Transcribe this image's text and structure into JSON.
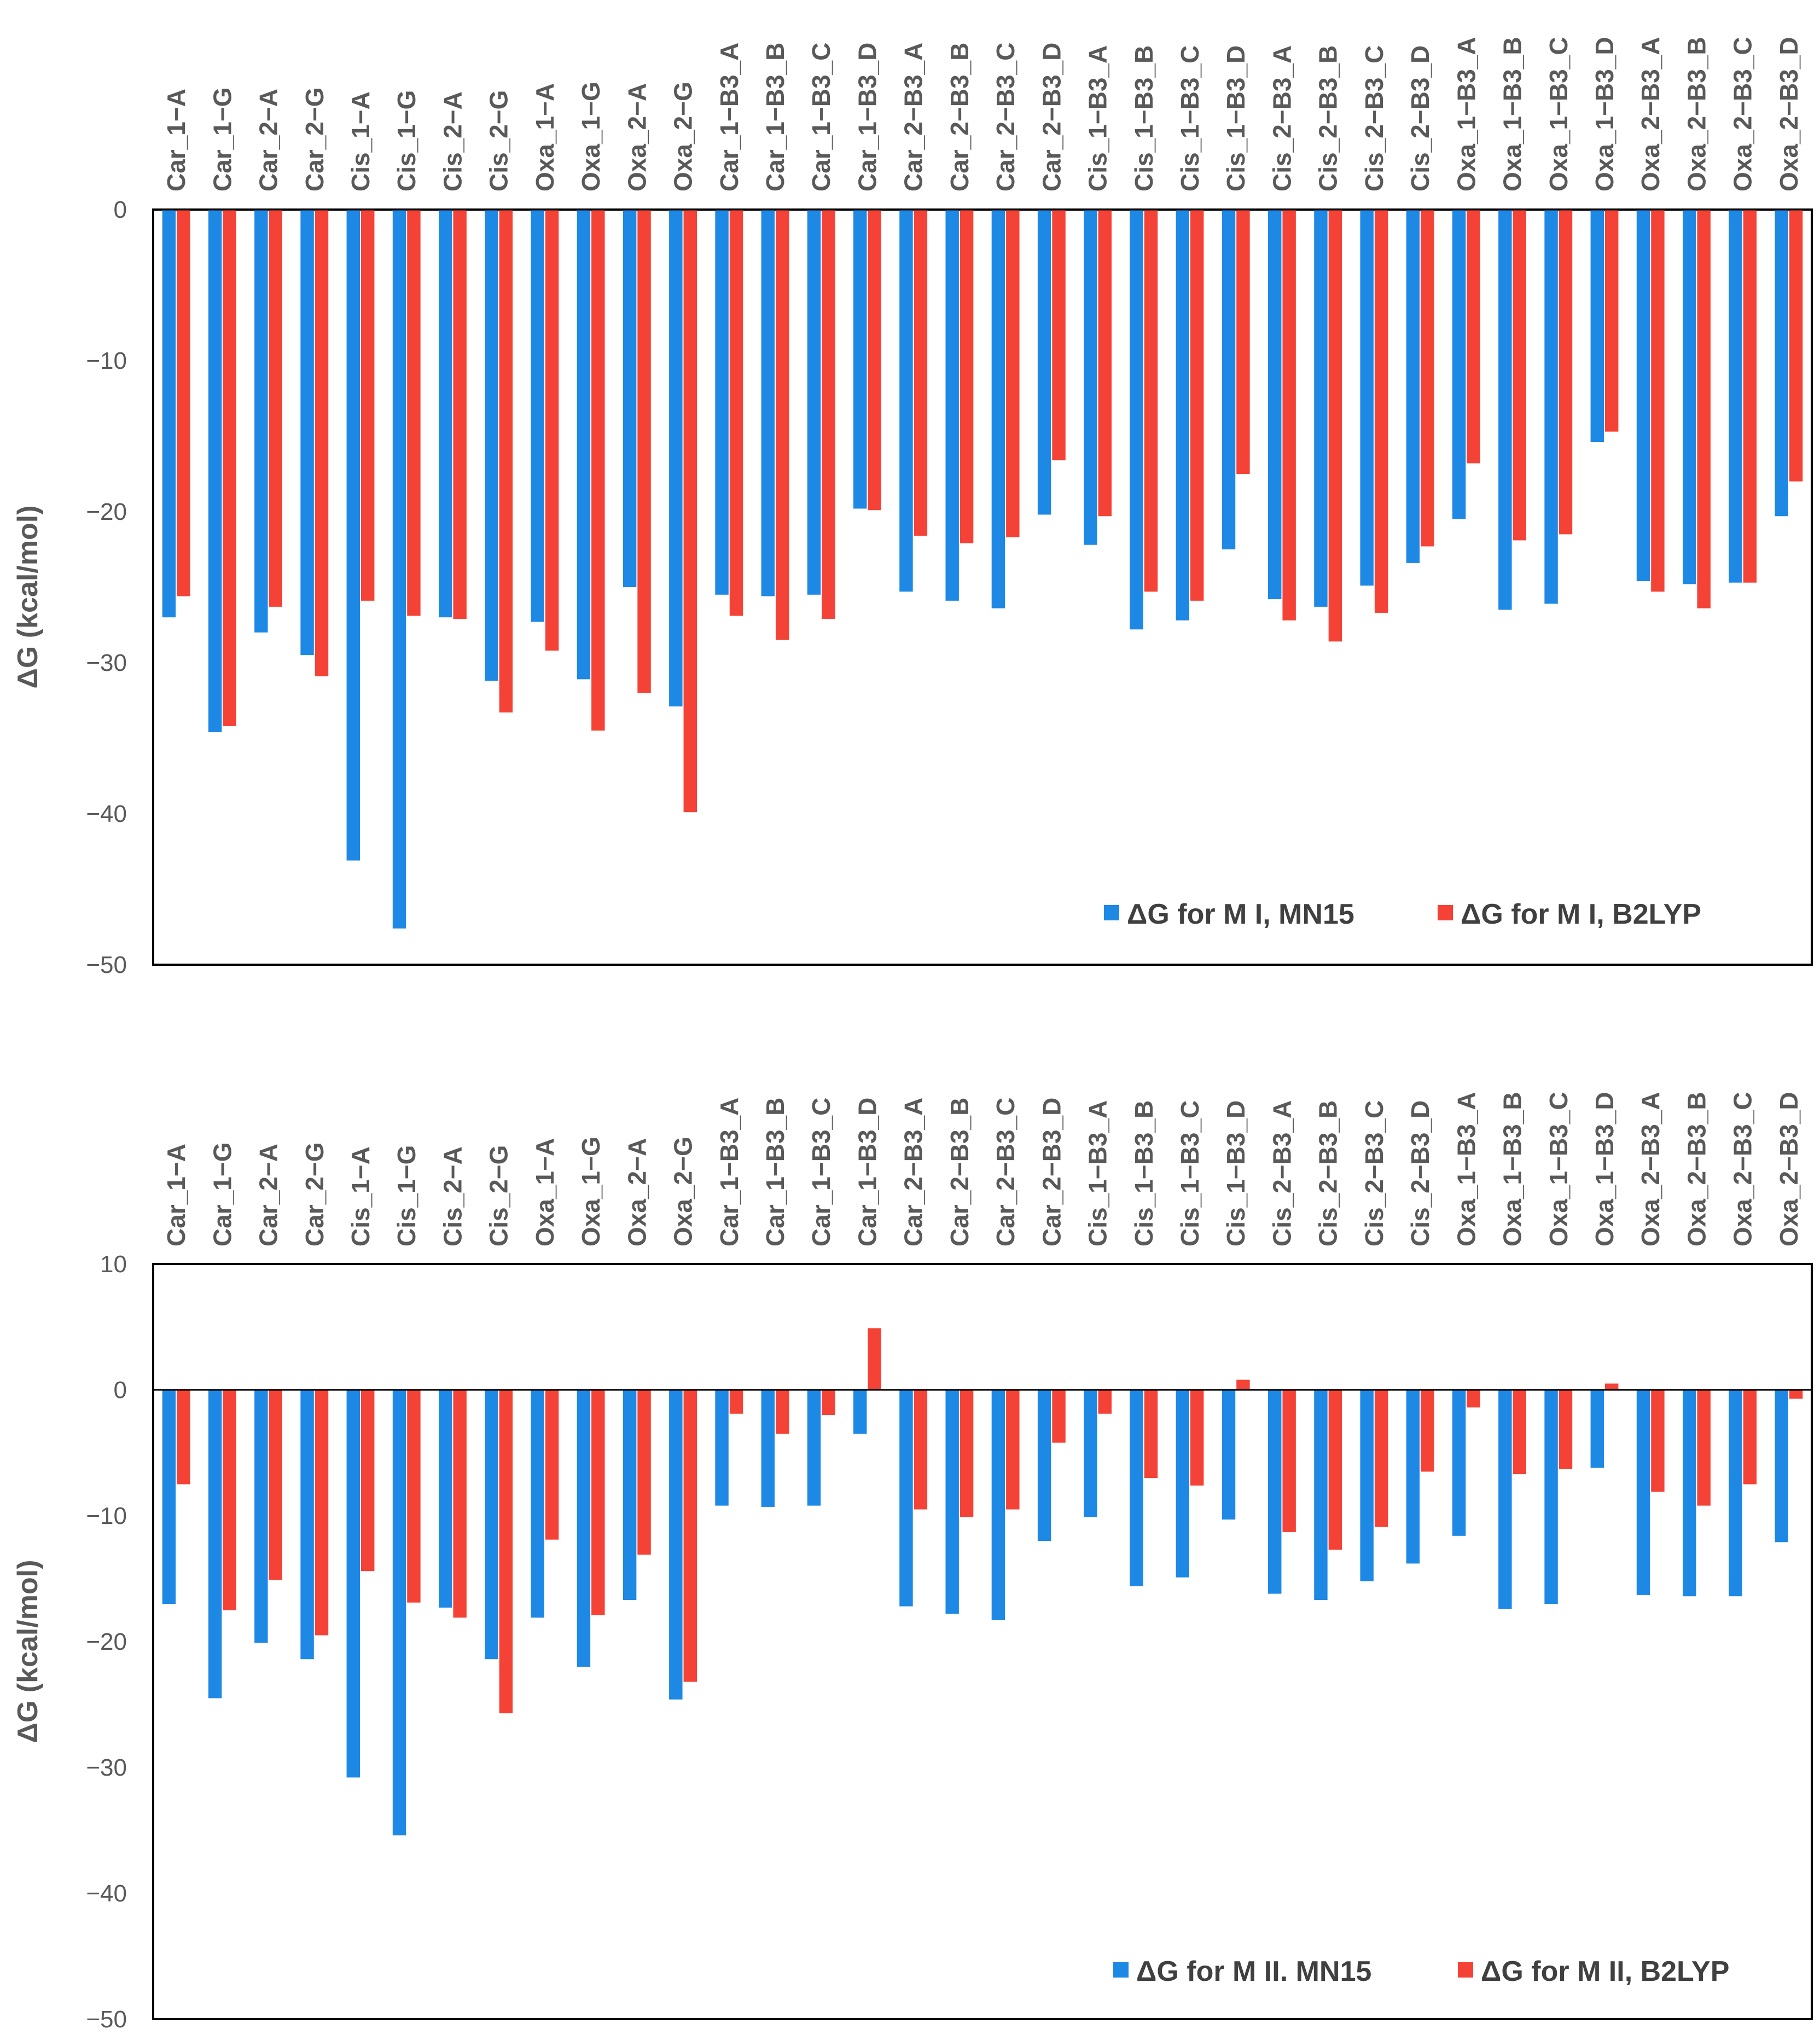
{
  "chart_data": [
    {
      "type": "bar",
      "ylabel": "ΔG (kcal/mol)",
      "ylim": [
        -50,
        0
      ],
      "yticks": [
        0,
        -10,
        -20,
        -30,
        -40,
        -50
      ],
      "legend_position": "bottom-right",
      "categories": [
        "Car_1−A",
        "Car_1−G",
        "Car_2−A",
        "Car_2−G",
        "Cis_1−A",
        "Cis_1−G",
        "Cis_2−A",
        "Cis_2−G",
        "Oxa_1−A",
        "Oxa_1−G",
        "Oxa_2−A",
        "Oxa_2−G",
        "Car_1−B3_A",
        "Car_1−B3_B",
        "Car_1−B3_C",
        "Car_1−B3_D",
        "Car_2−B3_A",
        "Car_2−B3_B",
        "Car_2−B3_C",
        "Car_2−B3_D",
        "Cis_1−B3_A",
        "Cis_1−B3_B",
        "Cis_1−B3_C",
        "Cis_1−B3_D",
        "Cis_2−B3_A",
        "Cis_2−B3_B",
        "Cis_2−B3_C",
        "Cis_2−B3_D",
        "Oxa_1−B3_A",
        "Oxa_1−B3_B",
        "Oxa_1−B3_C",
        "Oxa_1−B3_D",
        "Oxa_2−B3_A",
        "Oxa_2−B3_B",
        "Oxa_2−B3_C",
        "Oxa_2−B3_D"
      ],
      "series": [
        {
          "name": "ΔG for M I, MN15",
          "color": "#1e88e5",
          "values": [
            -27.0,
            -34.6,
            -28.0,
            -29.5,
            -43.1,
            -47.6,
            -27.0,
            -31.2,
            -27.3,
            -31.1,
            -25.0,
            -32.9,
            -25.5,
            -25.6,
            -25.5,
            -19.8,
            -25.3,
            -25.9,
            -26.4,
            -20.2,
            -22.2,
            -27.8,
            -27.2,
            -22.5,
            -25.8,
            -26.3,
            -24.9,
            -23.4,
            -20.5,
            -26.5,
            -26.1,
            -15.4,
            -24.6,
            -24.8,
            -24.7,
            -20.3
          ]
        },
        {
          "name": "ΔG for M I, B2LYP",
          "color": "#f44336",
          "values": [
            -25.6,
            -34.2,
            -26.3,
            -30.9,
            -25.9,
            -26.9,
            -27.1,
            -33.3,
            -29.2,
            -34.5,
            -32.0,
            -39.9,
            -26.9,
            -28.5,
            -27.1,
            -19.9,
            -21.6,
            -22.1,
            -21.7,
            -16.6,
            -20.3,
            -25.3,
            -25.9,
            -17.5,
            -27.2,
            -28.6,
            -26.7,
            -22.3,
            -16.8,
            -21.9,
            -21.5,
            -14.7,
            -25.3,
            -26.4,
            -24.7,
            -18.0
          ]
        }
      ]
    },
    {
      "type": "bar",
      "ylabel": "ΔG (kcal/mol)",
      "ylim": [
        -50,
        10
      ],
      "yticks": [
        10,
        0,
        -10,
        -20,
        -30,
        -40,
        -50
      ],
      "legend_position": "bottom-right",
      "categories": [
        "Car_1−A",
        "Car_1−G",
        "Car_2−A",
        "Car_2−G",
        "Cis_1−A",
        "Cis_1−G",
        "Cis_2−A",
        "Cis_2−G",
        "Oxa_1−A",
        "Oxa_1−G",
        "Oxa_2−A",
        "Oxa_2−G",
        "Car_1−B3_A",
        "Car_1−B3_B",
        "Car_1−B3_C",
        "Car_1−B3_D",
        "Car_2−B3_A",
        "Car_2−B3_B",
        "Car_2−B3_C",
        "Car_2−B3_D",
        "Cis_1−B3_A",
        "Cis_1−B3_B",
        "Cis_1−B3_C",
        "Cis_1−B3_D",
        "Cis_2−B3_A",
        "Cis_2−B3_B",
        "Cis_2−B3_C",
        "Cis_2−B3_D",
        "Oxa_1−B3_A",
        "Oxa_1−B3_B",
        "Oxa_1−B3_C",
        "Oxa_1−B3_D",
        "Oxa_2−B3_A",
        "Oxa_2−B3_B",
        "Oxa_2−B3_C",
        "Oxa_2−B3_D"
      ],
      "series": [
        {
          "name": "ΔG for M II. MN15",
          "color": "#1e88e5",
          "values": [
            -17.0,
            -24.5,
            -20.1,
            -21.4,
            -30.8,
            -35.4,
            -17.3,
            -21.4,
            -18.1,
            -22.0,
            -16.7,
            -24.6,
            -9.2,
            -9.3,
            -9.2,
            -3.5,
            -17.2,
            -17.8,
            -18.3,
            -12.0,
            -10.1,
            -15.6,
            -14.9,
            -10.3,
            -16.2,
            -16.7,
            -15.2,
            -13.8,
            -11.6,
            -17.4,
            -17.0,
            -6.2,
            -16.3,
            -16.4,
            -16.4,
            -12.1
          ]
        },
        {
          "name": "ΔG for M II, B2LYP",
          "color": "#f44336",
          "values": [
            -7.5,
            -17.5,
            -15.1,
            -19.5,
            -14.4,
            -16.9,
            -18.1,
            -25.7,
            -11.9,
            -17.9,
            -13.1,
            -23.2,
            -1.9,
            -3.5,
            -2.0,
            4.9,
            -9.5,
            -10.1,
            -9.5,
            -4.2,
            -1.9,
            -7.0,
            -7.6,
            0.8,
            -11.3,
            -12.7,
            -10.9,
            -6.5,
            -1.4,
            -6.7,
            -6.3,
            0.5,
            -8.1,
            -9.2,
            -7.5,
            -0.7
          ]
        }
      ]
    }
  ]
}
